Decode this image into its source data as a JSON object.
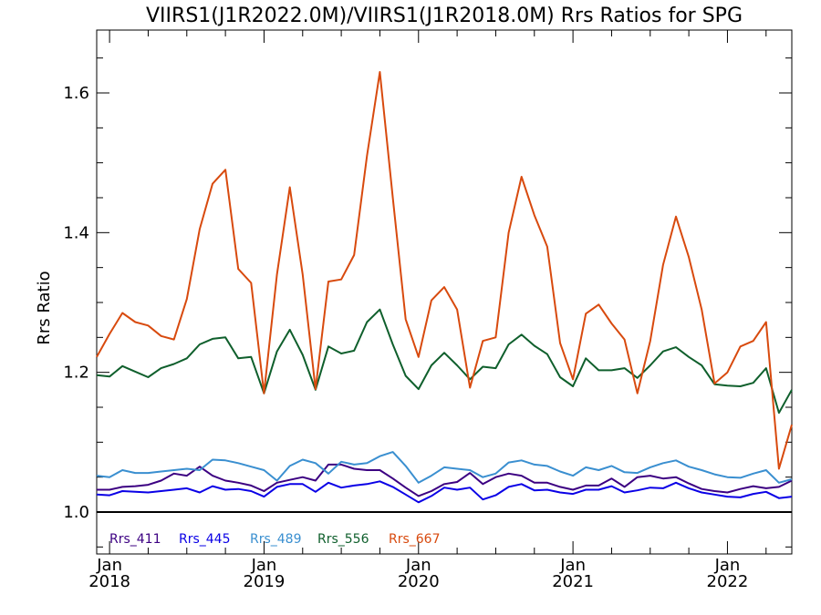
{
  "chart_data": {
    "type": "line",
    "title": "VIIRS1(J1R2022.0M)/VIIRS1(J1R2018.0M)  Rrs Ratios for SPG",
    "xlabel": "",
    "ylabel": "Rrs Ratio",
    "xlim": [
      "2017-12-15",
      "2022-06-15"
    ],
    "ylim": [
      0.94,
      1.69
    ],
    "y_ticks": [
      "1.0",
      "1.2",
      "1.4",
      "1.6"
    ],
    "x_ticks": [
      {
        "month": "Jan",
        "year": "2018"
      },
      {
        "month": "Jan",
        "year": "2019"
      },
      {
        "month": "Jan",
        "year": "2020"
      },
      {
        "month": "Jan",
        "year": "2021"
      },
      {
        "month": "Jan",
        "year": "2022"
      }
    ],
    "reference_line": 1.0,
    "legend_position": "bottom-left",
    "grid": false,
    "start_month": "2017-12",
    "series": [
      {
        "name": "Rrs_411",
        "color": "#3c0082",
        "values": [
          1.032,
          1.032,
          1.036,
          1.037,
          1.039,
          1.045,
          1.055,
          1.052,
          1.065,
          1.052,
          1.045,
          1.042,
          1.038,
          1.03,
          1.042,
          1.046,
          1.05,
          1.045,
          1.068,
          1.068,
          1.062,
          1.06,
          1.06,
          1.048,
          1.035,
          1.023,
          1.03,
          1.04,
          1.043,
          1.056,
          1.04,
          1.05,
          1.055,
          1.052,
          1.042,
          1.042,
          1.036,
          1.032,
          1.038,
          1.038,
          1.048,
          1.036,
          1.05,
          1.052,
          1.048,
          1.05,
          1.041,
          1.033,
          1.03,
          1.028,
          1.033,
          1.037,
          1.034,
          1.036,
          1.045
        ]
      },
      {
        "name": "Rrs_445",
        "color": "#0a00e6",
        "values": [
          1.025,
          1.024,
          1.03,
          1.029,
          1.028,
          1.03,
          1.032,
          1.034,
          1.028,
          1.037,
          1.032,
          1.033,
          1.03,
          1.022,
          1.036,
          1.04,
          1.04,
          1.029,
          1.042,
          1.035,
          1.038,
          1.04,
          1.044,
          1.036,
          1.025,
          1.014,
          1.023,
          1.035,
          1.032,
          1.035,
          1.018,
          1.024,
          1.036,
          1.04,
          1.031,
          1.032,
          1.028,
          1.026,
          1.032,
          1.032,
          1.037,
          1.028,
          1.031,
          1.035,
          1.034,
          1.042,
          1.034,
          1.028,
          1.025,
          1.022,
          1.021,
          1.026,
          1.029,
          1.02,
          1.022
        ]
      },
      {
        "name": "Rrs_489",
        "color": "#3a8fd0",
        "values": [
          1.052,
          1.05,
          1.06,
          1.056,
          1.056,
          1.058,
          1.06,
          1.062,
          1.06,
          1.075,
          1.074,
          1.07,
          1.065,
          1.06,
          1.045,
          1.066,
          1.075,
          1.07,
          1.055,
          1.072,
          1.068,
          1.07,
          1.08,
          1.086,
          1.066,
          1.042,
          1.052,
          1.064,
          1.062,
          1.06,
          1.05,
          1.055,
          1.071,
          1.074,
          1.068,
          1.066,
          1.058,
          1.052,
          1.064,
          1.06,
          1.066,
          1.057,
          1.056,
          1.064,
          1.07,
          1.074,
          1.065,
          1.06,
          1.054,
          1.05,
          1.049,
          1.055,
          1.06,
          1.042,
          1.047
        ]
      },
      {
        "name": "Rrs_556",
        "color": "#0f5f2c",
        "values": [
          1.196,
          1.194,
          1.209,
          1.201,
          1.193,
          1.206,
          1.212,
          1.22,
          1.24,
          1.248,
          1.25,
          1.22,
          1.222,
          1.17,
          1.23,
          1.261,
          1.225,
          1.175,
          1.237,
          1.227,
          1.231,
          1.272,
          1.29,
          1.24,
          1.195,
          1.176,
          1.21,
          1.228,
          1.21,
          1.19,
          1.208,
          1.206,
          1.24,
          1.254,
          1.238,
          1.226,
          1.193,
          1.18,
          1.22,
          1.203,
          1.203,
          1.206,
          1.192,
          1.21,
          1.23,
          1.236,
          1.222,
          1.21,
          1.183,
          1.181,
          1.18,
          1.185,
          1.206,
          1.142,
          1.175
        ]
      },
      {
        "name": "Rrs_667",
        "color": "#d84a0e",
        "values": [
          1.222,
          1.255,
          1.285,
          1.272,
          1.267,
          1.252,
          1.247,
          1.305,
          1.405,
          1.47,
          1.49,
          1.348,
          1.328,
          1.17,
          1.34,
          1.465,
          1.34,
          1.176,
          1.33,
          1.333,
          1.368,
          1.51,
          1.63,
          1.45,
          1.276,
          1.222,
          1.303,
          1.322,
          1.29,
          1.178,
          1.245,
          1.25,
          1.4,
          1.48,
          1.425,
          1.38,
          1.242,
          1.19,
          1.284,
          1.297,
          1.27,
          1.247,
          1.17,
          1.245,
          1.354,
          1.423,
          1.365,
          1.29,
          1.184,
          1.2,
          1.237,
          1.245,
          1.272,
          1.062,
          1.125
        ]
      }
    ]
  }
}
